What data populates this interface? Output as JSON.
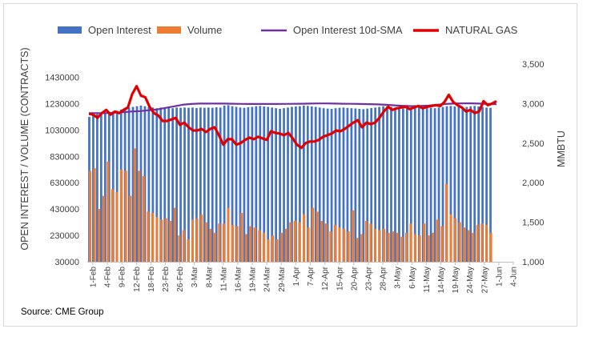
{
  "chart_data": {
    "type": "bar",
    "y_left_label": "OPEN INTEREST / VOLUME (CONTRACTS)",
    "y_right_label": "MMBTU",
    "y_left_ticks": [
      "30000",
      "230000",
      "430000",
      "630000",
      "830000",
      "1030000",
      "1230000",
      "1430000"
    ],
    "y_left_range": [
      30000,
      1530000
    ],
    "y_right_ticks": [
      "1,000",
      "1,500",
      "2,000",
      "2,500",
      "3,000",
      "3,500"
    ],
    "y_right_range": [
      1000,
      3500
    ],
    "x_ticks": [
      "1-Feb",
      "4-Feb",
      "9-Feb",
      "12-Feb",
      "18-Feb",
      "23-Feb",
      "26-Feb",
      "3-Mar",
      "8-Mar",
      "11-Mar",
      "16-Mar",
      "19-Mar",
      "24-Mar",
      "29-Mar",
      "1-Apr",
      "7-Apr",
      "12-Apr",
      "15-Apr",
      "20-Apr",
      "23-Apr",
      "28-Apr",
      "3-May",
      "6-May",
      "11-May",
      "14-May",
      "19-May",
      "24-May",
      "27-May",
      "1-Jun",
      "4-Jun"
    ],
    "legend": [
      {
        "name": "Open Interest",
        "color": "#4472c4",
        "kind": "bar"
      },
      {
        "name": "Volume",
        "color": "#ed7d31",
        "kind": "bar"
      },
      {
        "name": "Open Interest 10d-SMA",
        "color": "#7030a0",
        "kind": "line"
      },
      {
        "name": "NATURAL GAS",
        "color": "#e00000",
        "kind": "line"
      }
    ],
    "legend_position": "top",
    "grid": false,
    "series": [
      {
        "name": "Open Interest",
        "values": [
          1130000,
          1140000,
          1150000,
          1145000,
          1160000,
          1165000,
          1170000,
          1175000,
          1185000,
          1195000,
          1200000,
          1205000,
          1210000,
          1215000,
          1210000,
          1205000,
          1200000,
          1195000,
          1200000,
          1195000,
          1200000,
          1195000,
          1200000,
          1198000,
          1200000,
          1198000,
          1200000,
          1196000,
          1200000,
          1198000,
          1200000,
          1198000,
          1202000,
          1200000,
          1215000,
          1218000,
          1210000,
          1205000,
          1200000,
          1198000,
          1202000,
          1205000,
          1210000,
          1212000,
          1208000,
          1205000,
          1200000,
          1195000,
          1190000,
          1195000,
          1200000,
          1205000,
          1208000,
          1210000,
          1215000,
          1212000,
          1208000,
          1205000,
          1200000,
          1195000,
          1192000,
          1190000,
          1195000,
          1198000,
          1200000,
          1197000,
          1195000,
          1193000,
          1190000,
          1188000,
          1192000,
          1196000,
          1200000,
          1205000,
          1210000,
          1208000,
          1205000,
          1200000,
          1196000,
          1192000,
          1195000,
          1198000,
          1200000,
          1203000,
          1205000,
          1200000,
          1198000,
          1195000,
          1200000,
          1205000,
          1210000,
          1212000,
          1208000,
          1205000,
          1200000,
          1205000,
          1210000,
          1212000,
          1208000,
          1205000,
          1200000,
          1198000
        ]
      },
      {
        "name": "Volume",
        "values": [
          720000,
          740000,
          430000,
          530000,
          790000,
          580000,
          560000,
          730000,
          720000,
          530000,
          890000,
          720000,
          680000,
          410000,
          400000,
          370000,
          350000,
          360000,
          340000,
          440000,
          230000,
          270000,
          200000,
          350000,
          360000,
          390000,
          330000,
          280000,
          250000,
          320000,
          320000,
          440000,
          310000,
          300000,
          400000,
          240000,
          300000,
          290000,
          270000,
          250000,
          200000,
          230000,
          200000,
          250000,
          280000,
          330000,
          340000,
          330000,
          390000,
          290000,
          440000,
          410000,
          340000,
          320000,
          260000,
          310000,
          290000,
          280000,
          260000,
          420000,
          210000,
          240000,
          340000,
          320000,
          280000,
          270000,
          280000,
          250000,
          260000,
          250000,
          220000,
          250000,
          320000,
          240000,
          230000,
          320000,
          230000,
          250000,
          350000,
          300000,
          620000,
          390000,
          360000,
          330000,
          290000,
          270000,
          250000,
          310000,
          320000,
          310000,
          250000
        ]
      },
      {
        "name": "Open Interest 10d-SMA",
        "values": [
          2880,
          2880,
          2880,
          2885,
          2890,
          2900,
          2905,
          2915,
          2925,
          2945,
          2965,
          2985,
          2995,
          3000,
          3000,
          3000,
          3000,
          2998,
          2996,
          2995,
          2995,
          2995,
          2995,
          2996,
          2997,
          2998,
          3000,
          3002,
          3002,
          3000,
          2998,
          2997,
          2995,
          2993,
          2990,
          2985,
          2978,
          2972,
          2968,
          2970,
          2975,
          2985,
          2995,
          3000,
          3003,
          3003,
          3000,
          2995,
          2992
        ]
      },
      {
        "name": "NATURAL GAS",
        "values": [
          2870,
          2860,
          2820,
          2880,
          2920,
          2860,
          2900,
          2880,
          2920,
          2950,
          3120,
          3220,
          3100,
          3080,
          2960,
          2880,
          2850,
          2780,
          2780,
          2800,
          2820,
          2730,
          2760,
          2700,
          2660,
          2660,
          2680,
          2640,
          2680,
          2700,
          2600,
          2480,
          2550,
          2550,
          2480,
          2500,
          2540,
          2570,
          2550,
          2580,
          2560,
          2540,
          2650,
          2630,
          2620,
          2600,
          2630,
          2560,
          2480,
          2440,
          2500,
          2520,
          2520,
          2540,
          2580,
          2600,
          2620,
          2660,
          2650,
          2680,
          2720,
          2760,
          2790,
          2700,
          2760,
          2740,
          2760,
          2820,
          2900,
          2960,
          2920,
          2940,
          2950,
          2960,
          2930,
          2950,
          2970,
          2940,
          2960,
          2970,
          2980,
          2970,
          3020,
          3110,
          3020,
          2980,
          2950,
          2900,
          2920,
          2880,
          2900,
          3030,
          2980,
          3000,
          3030
        ]
      }
    ]
  },
  "source_text": "Source: CME Group"
}
